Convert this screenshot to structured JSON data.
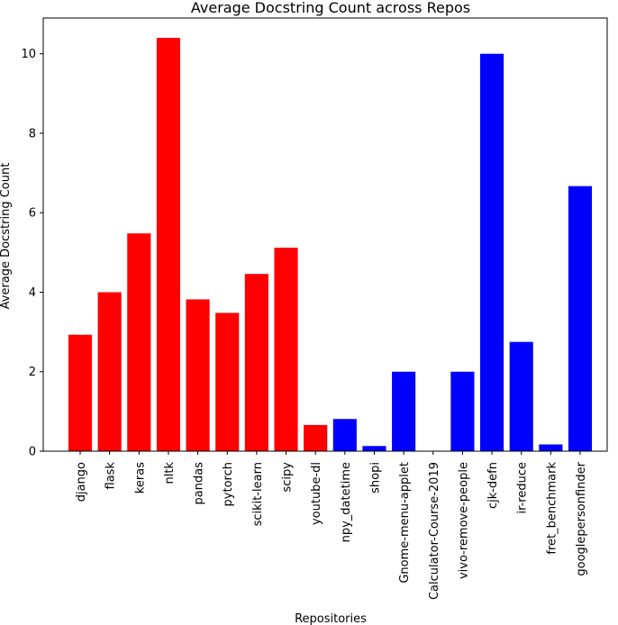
{
  "chart_data": {
    "type": "bar",
    "title": "Average Docstring Count across Repos",
    "xlabel": "Repositories",
    "ylabel": "Average Docstring Count",
    "ylim": [
      0,
      10.9
    ],
    "yticks": [
      0,
      2,
      4,
      6,
      8,
      10
    ],
    "categories": [
      "django",
      "flask",
      "keras",
      "nltk",
      "pandas",
      "pytorch",
      "scikit-learn",
      "scipy",
      "youtube-dl",
      "npy_datetime",
      "shopi",
      "Gnome-menu-applet",
      "Calculator-Course-2019",
      "vivo-remove-people",
      "cjk-defn",
      "ir-reduce",
      "fret_benchmark",
      "googlepersonfinder"
    ],
    "values": [
      2.93,
      4.0,
      5.48,
      10.4,
      3.82,
      3.48,
      4.46,
      5.12,
      0.66,
      0.81,
      0.13,
      2.0,
      0.0,
      2.0,
      10.0,
      2.75,
      0.17,
      6.67
    ],
    "colors": [
      "#ff0000",
      "#ff0000",
      "#ff0000",
      "#ff0000",
      "#ff0000",
      "#ff0000",
      "#ff0000",
      "#ff0000",
      "#ff0000",
      "#0000ff",
      "#0000ff",
      "#0000ff",
      "#0000ff",
      "#0000ff",
      "#0000ff",
      "#0000ff",
      "#0000ff",
      "#0000ff"
    ],
    "grid": false,
    "legend": "none"
  }
}
